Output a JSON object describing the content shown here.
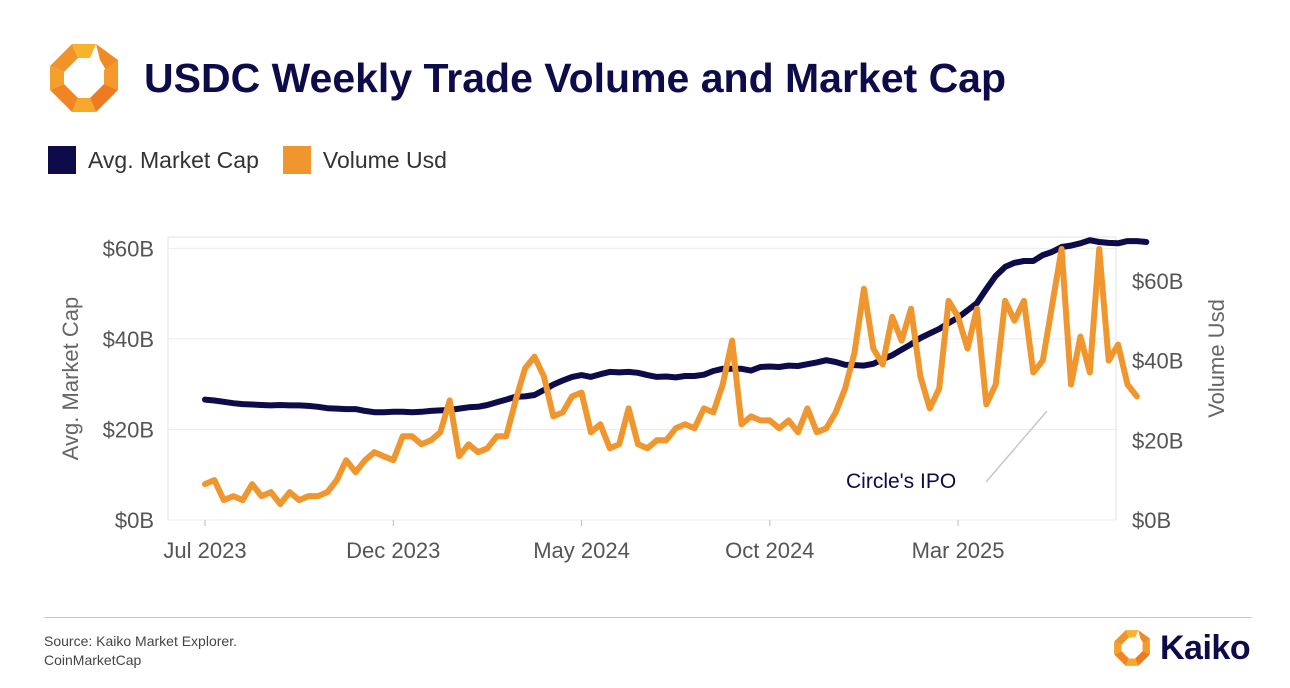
{
  "header": {
    "title": "USDC Weekly Trade Volume and Market Cap",
    "logo_icon": "kaiko-logo-icon"
  },
  "legend": [
    {
      "label": "Avg. Market Cap",
      "color": "#0e0b4a"
    },
    {
      "label": "Volume Usd",
      "color": "#f0962e"
    }
  ],
  "footer": {
    "source_line1": "Source: Kaiko Market Explorer.",
    "source_line2": "CoinMarketCap",
    "brand": "Kaiko"
  },
  "chart_data": {
    "type": "line",
    "annotation": "Circle's IPO",
    "x_ticks": [
      "Jul 2023",
      "Dec 2023",
      "May 2024",
      "Oct 2024",
      "Mar 2025"
    ],
    "x_tick_weeks": [
      0,
      20,
      40,
      60,
      80
    ],
    "left_axis": {
      "label": "Avg. Market Cap",
      "ticks": [
        "$0B",
        "$20B",
        "$40B",
        "$60B"
      ],
      "tick_values": [
        0,
        20,
        40,
        60
      ],
      "range": [
        0,
        62.5
      ]
    },
    "right_axis": {
      "label": "Volume Usd",
      "ticks": [
        "$0B",
        "$20B",
        "$40B",
        "$60B"
      ],
      "tick_values": [
        0,
        20,
        40,
        60
      ],
      "range": [
        0,
        71
      ]
    },
    "grid": true,
    "legend_position": "top-left",
    "series": [
      {
        "name": "Avg. Market Cap",
        "axis": "left",
        "color": "#0e0b4a",
        "values": [
          26.6,
          26.4,
          26.1,
          25.8,
          25.6,
          25.5,
          25.4,
          25.3,
          25.4,
          25.3,
          25.3,
          25.2,
          25.0,
          24.7,
          24.6,
          24.5,
          24.5,
          24.1,
          23.8,
          23.8,
          23.9,
          23.9,
          23.8,
          23.9,
          24.1,
          24.2,
          24.3,
          24.6,
          24.9,
          25.0,
          25.4,
          26.0,
          26.6,
          27.2,
          27.3,
          27.6,
          28.7,
          29.9,
          30.8,
          31.6,
          32.0,
          31.6,
          32.2,
          32.7,
          32.6,
          32.7,
          32.5,
          32.0,
          31.6,
          31.7,
          31.5,
          31.8,
          31.8,
          32.1,
          32.9,
          33.4,
          33.4,
          33.4,
          33.0,
          33.8,
          33.9,
          33.8,
          34.1,
          34.0,
          34.4,
          34.8,
          35.3,
          34.9,
          34.3,
          34.2,
          34.1,
          34.5,
          35.5,
          36.4,
          37.6,
          38.8,
          40.2,
          41.2,
          42.2,
          43.5,
          44.7,
          46.3,
          47.9,
          51.0,
          53.9,
          55.9,
          56.8,
          57.2,
          57.2,
          58.5,
          59.2,
          60.3,
          60.6,
          61.1,
          61.8,
          61.4,
          61.2,
          61.1,
          61.6,
          61.6,
          61.4
        ]
      },
      {
        "name": "Volume Usd",
        "axis": "right",
        "color": "#f0962e",
        "values": [
          9,
          10,
          5,
          6,
          5,
          9,
          6,
          7,
          4,
          7,
          5,
          6,
          6,
          7,
          10,
          15,
          12,
          15,
          17,
          16,
          15,
          21,
          21,
          19,
          20,
          22,
          30,
          16,
          19,
          17,
          18,
          21,
          21,
          30,
          38,
          41,
          36,
          26,
          27,
          31,
          32,
          22,
          24,
          18,
          19,
          28,
          19,
          18,
          20,
          20,
          23,
          24,
          23,
          28,
          27,
          34,
          45,
          24,
          26,
          25,
          25,
          23,
          25,
          22,
          28,
          22,
          23,
          27,
          33,
          42,
          58,
          43,
          39,
          51,
          45,
          53,
          36,
          28,
          33,
          55,
          51,
          43,
          53,
          29,
          34,
          55,
          50,
          55,
          37,
          40,
          54,
          68,
          34,
          46,
          37,
          68,
          40,
          44,
          34,
          31
        ]
      }
    ]
  }
}
